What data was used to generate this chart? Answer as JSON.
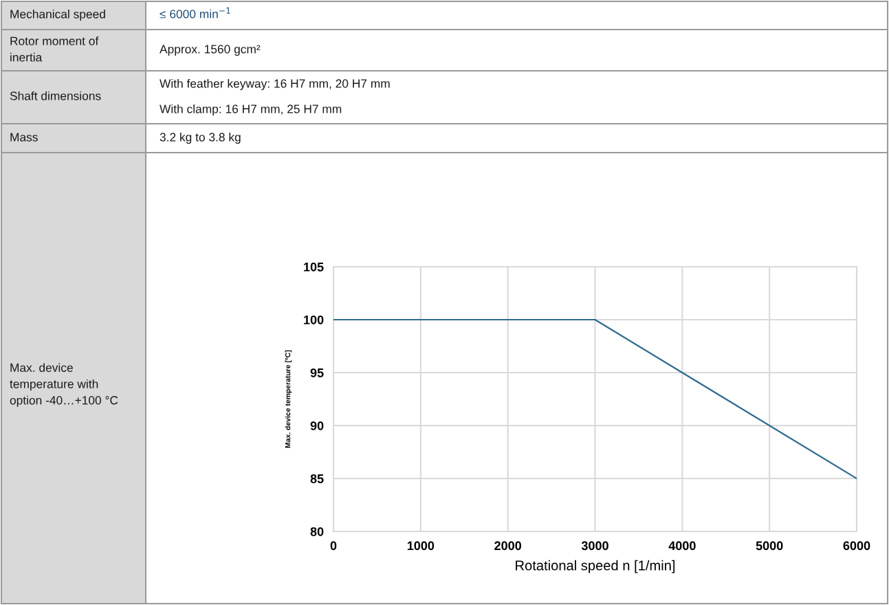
{
  "chart_data": {
    "type": "line",
    "x": [
      0,
      3000,
      6000
    ],
    "series": [
      {
        "color": "#2e6a8e",
        "values": [
          100,
          100,
          85
        ]
      }
    ],
    "xlabel": "Rotational speed n [1/min]",
    "ylabel": "Max. device temperature [ºC]",
    "xlim": [
      0,
      6000
    ],
    "xticks": [
      0,
      1000,
      2000,
      3000,
      4000,
      5000,
      6000
    ],
    "ylim": [
      80,
      105
    ],
    "yticks": [
      80,
      85,
      90,
      95,
      100,
      105
    ],
    "grid": true,
    "marker": "none",
    "line_style": "solid",
    "annotations": [
      "Mechanical speed",
      "≤ 6000 min$^{−1}$",
      "Rotor moment of\ninertia",
      "Approx. 1560 gcm²",
      "Shaft dimensions",
      "With feather keyway: 16 H7 mm, 20 H7 mm",
      "With clamp: 16 H7 mm, 25 H7 mm",
      "Mass",
      "3.2 kg to 3.8 kg",
      "Max. device\ntemperature with\noption -40…+100 °C"
    ]
  }
}
